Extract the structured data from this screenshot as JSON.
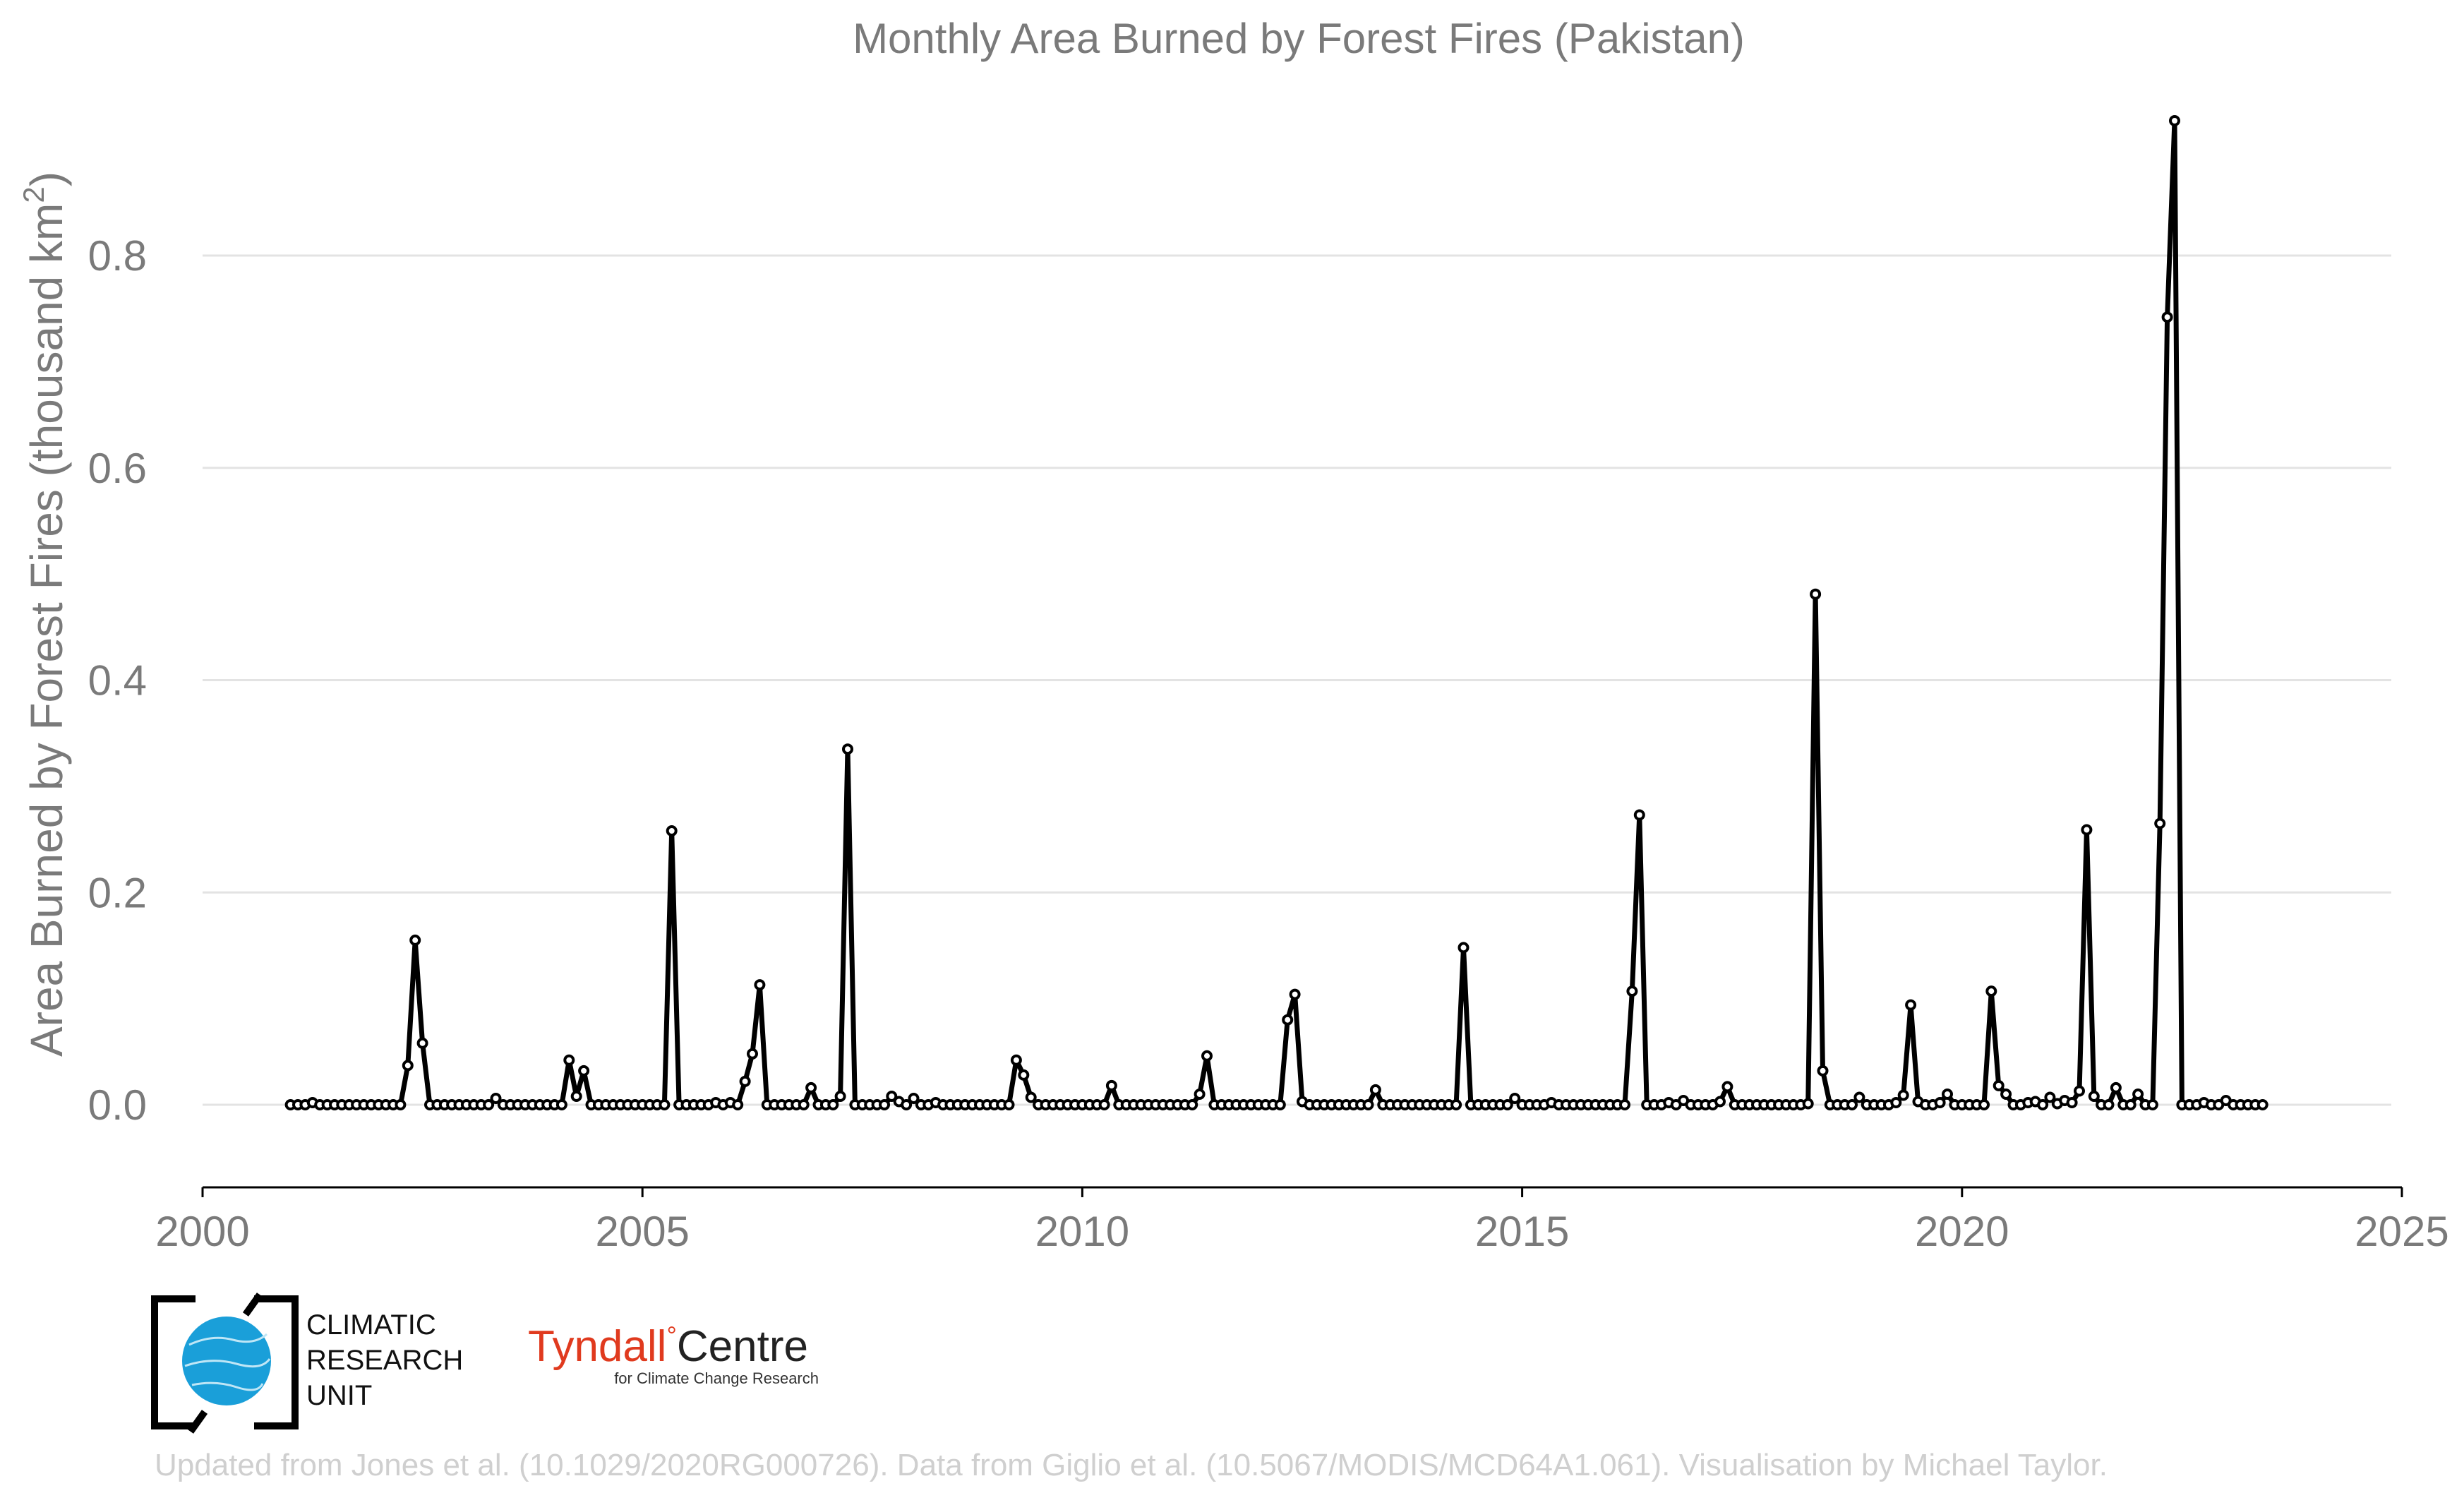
{
  "chart_data": {
    "type": "line",
    "title": "Monthly Area Burned by Forest Fires (Pakistan)",
    "ylabel": "Area Burned by Forest Fires (thousand km²)",
    "ylabel_main": "Area Burned by Forest Fires (thousand km",
    "ylabel_sup": "2",
    "ylabel_end": ")",
    "xlabel": "",
    "xlim": [
      2000,
      2025
    ],
    "ylim": [
      -0.075,
      0.93
    ],
    "x_ticks": [
      2000,
      2005,
      2010,
      2015,
      2020,
      2025
    ],
    "x_tick_labels": [
      "2000",
      "2005",
      "2010",
      "2015",
      "2020",
      "2025"
    ],
    "y_ticks": [
      0.0,
      0.2,
      0.4,
      0.6,
      0.8
    ],
    "y_tick_labels": [
      "0.0",
      "0.2",
      "0.4",
      "0.6",
      "0.8"
    ],
    "grid": "horizontal",
    "legend": "none",
    "series": [
      {
        "x_start": "2001-01",
        "frequency": "monthly",
        "color": "#000000",
        "values": [
          0,
          0,
          0,
          0.002,
          0,
          0,
          0,
          0,
          0,
          0,
          0,
          0,
          0,
          0,
          0,
          0,
          0.037,
          0.155,
          0.058,
          0,
          0,
          0,
          0,
          0,
          0,
          0,
          0,
          0,
          0.006,
          0,
          0,
          0,
          0,
          0,
          0,
          0,
          0,
          0,
          0.042,
          0.008,
          0.032,
          0,
          0,
          0,
          0,
          0,
          0,
          0,
          0,
          0,
          0,
          0,
          0.258,
          0,
          0,
          0,
          0,
          0,
          0.002,
          0,
          0.002,
          0,
          0.022,
          0.048,
          0.113,
          0,
          0,
          0,
          0,
          0,
          0,
          0.016,
          0,
          0,
          0,
          0.008,
          0.335,
          0,
          0,
          0,
          0,
          0,
          0.008,
          0.003,
          0,
          0.006,
          0,
          0,
          0.002,
          0,
          0,
          0,
          0,
          0,
          0,
          0,
          0,
          0,
          0,
          0.042,
          0.028,
          0.007,
          0,
          0,
          0,
          0,
          0,
          0,
          0,
          0,
          0,
          0,
          0.018,
          0,
          0,
          0,
          0,
          0,
          0,
          0,
          0,
          0,
          0,
          0,
          0.01,
          0.046,
          0,
          0,
          0,
          0,
          0,
          0,
          0,
          0,
          0,
          0,
          0.08,
          0.104,
          0.003,
          0,
          0,
          0,
          0,
          0,
          0,
          0,
          0,
          0,
          0.014,
          0,
          0,
          0,
          0,
          0,
          0,
          0,
          0,
          0,
          0,
          0,
          0.148,
          0,
          0,
          0,
          0,
          0,
          0,
          0.006,
          0,
          0,
          0,
          0,
          0.002,
          0,
          0,
          0,
          0,
          0,
          0,
          0,
          0,
          0,
          0,
          0.107,
          0.273,
          0,
          0,
          0,
          0.002,
          0,
          0.004,
          0,
          0,
          0,
          0,
          0.003,
          0.017,
          0,
          0,
          0,
          0,
          0,
          0,
          0,
          0,
          0,
          0,
          0.001,
          0.481,
          0.032,
          0,
          0,
          0,
          0,
          0.007,
          0,
          0,
          0,
          0,
          0.002,
          0.009,
          0.094,
          0.003,
          0,
          0,
          0.002,
          0.01,
          0,
          0,
          0,
          0,
          0,
          0.107,
          0.018,
          0.01,
          0,
          0,
          0.002,
          0.003,
          0,
          0.007,
          0.001,
          0.004,
          0.002,
          0.013,
          0.259,
          0.008,
          0,
          0,
          0.016,
          0,
          0,
          0.01,
          0,
          0,
          0.265,
          0.742,
          0.927,
          0,
          0,
          0,
          0.002,
          0,
          0,
          0.004,
          0,
          0,
          0,
          0,
          0
        ]
      }
    ]
  },
  "logos": {
    "cru_lines": [
      "CLIMATIC",
      "RESEARCH",
      "UNIT"
    ],
    "tyndall_red": "Tyndall",
    "tyndall_degree": "°",
    "tyndall_dark": "Centre",
    "tyndall_sub": "for Climate Change Research"
  },
  "credit": "Updated from Jones et al. (10.1029/2020RG000726). Data from Giglio et al. (10.5067/MODIS/MCD64A1.061). Visualisation by Michael Taylor."
}
